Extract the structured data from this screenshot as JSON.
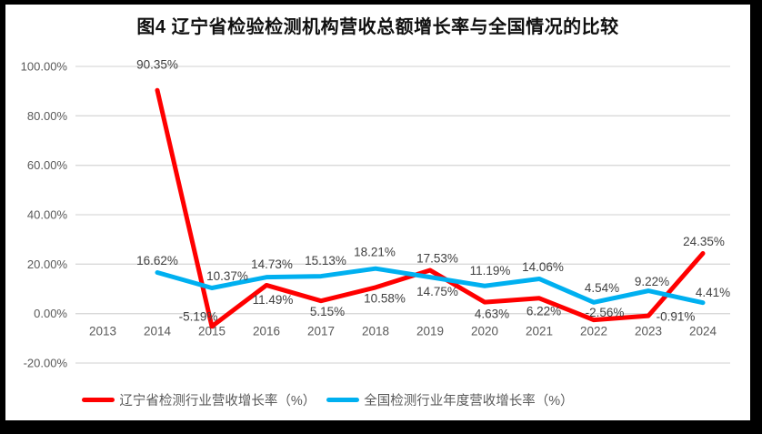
{
  "figure": {
    "title": "图4 辽宁省检验检测机构营收总额增长率与全国情况的比较"
  },
  "chart_data": {
    "type": "line",
    "title": "图4 辽宁省检验检测机构营收总额增长率与全国情况的比较",
    "categories": [
      "2013",
      "2014",
      "2015",
      "2016",
      "2017",
      "2018",
      "2019",
      "2020",
      "2021",
      "2022",
      "2023",
      "2024"
    ],
    "xlabel": "",
    "ylabel": "",
    "ylim": [
      -20,
      100
    ],
    "ytick_step": 20,
    "yticks": [
      "100.00%",
      "80.00%",
      "60.00%",
      "40.00%",
      "20.00%",
      "0.00%",
      "-20.00%"
    ],
    "grid": true,
    "legend_position": "bottom",
    "colors": {
      "grid": "#d9d9d9",
      "axis_text": "#595959",
      "label_text": "#404040"
    },
    "series": [
      {
        "name": "辽宁省检测行业营收增长率（%）",
        "color": "#ff0000",
        "values": [
          null,
          90.35,
          -5.19,
          11.49,
          5.15,
          10.58,
          17.53,
          4.63,
          6.22,
          -2.56,
          -0.91,
          24.35
        ],
        "labels": [
          null,
          "90.35%",
          "-5.19%",
          "11.49%",
          "5.15%",
          "10.58%",
          "17.53%",
          "4.63%",
          "6.22%",
          "-2.56%",
          "-0.91%",
          "24.35%"
        ],
        "label_offsets": [
          [
            0,
            0
          ],
          [
            0,
            -28
          ],
          [
            -15,
            -11
          ],
          [
            7,
            16
          ],
          [
            7,
            12
          ],
          [
            10,
            12
          ],
          [
            8,
            -13
          ],
          [
            8,
            13
          ],
          [
            5,
            14
          ],
          [
            12,
            -8
          ],
          [
            30,
            1
          ],
          [
            1,
            -13
          ]
        ]
      },
      {
        "name": "全国检测行业年度营收增长率（%）",
        "color": "#00b0f0",
        "values": [
          null,
          16.62,
          10.37,
          14.73,
          15.13,
          18.21,
          14.75,
          11.19,
          14.06,
          4.54,
          9.22,
          4.41
        ],
        "labels": [
          null,
          "16.62%",
          "10.37%",
          "14.73%",
          "15.13%",
          "18.21%",
          "14.75%",
          "11.19%",
          "14.06%",
          "4.54%",
          "9.22%",
          "4.41%"
        ],
        "label_offsets": [
          [
            0,
            0
          ],
          [
            0,
            -13
          ],
          [
            17,
            -13
          ],
          [
            6,
            -14
          ],
          [
            5,
            -17
          ],
          [
            -1,
            -18
          ],
          [
            8,
            16
          ],
          [
            6,
            -17
          ],
          [
            4,
            -13
          ],
          [
            9,
            -16
          ],
          [
            4,
            -10
          ],
          [
            11,
            -11
          ]
        ]
      }
    ]
  }
}
